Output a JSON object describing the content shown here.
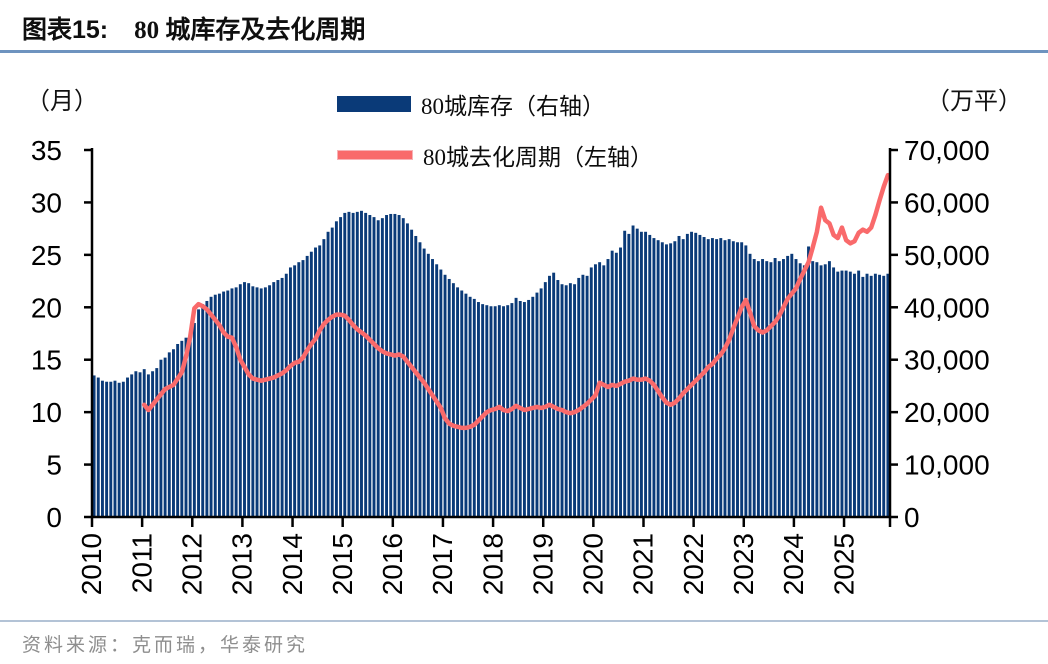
{
  "title": {
    "prefix": "图表15:",
    "text": "80 城库存及去化周期"
  },
  "colors": {
    "bar": "#0a3a78",
    "line": "#f96a6b",
    "line_swatch_border": "#f7b2b6",
    "axis": "#000000",
    "title_underline": "#6e93bf",
    "footer_divider": "#b3c3d6",
    "source_text": "#8e8e8e"
  },
  "axis_units": {
    "left": "（月）",
    "right": "（万平）"
  },
  "legend": [
    {
      "label": "80城库存（右轴）",
      "type": "bar",
      "color": "#0a3a78"
    },
    {
      "label": "80城去化周期（左轴）",
      "type": "line",
      "color": "#f96a6b"
    }
  ],
  "source": {
    "label": "资料来源：克而瑞，华泰研究"
  },
  "chart_data": {
    "type": "bar+line",
    "x_start": "2010-01",
    "x_end": "2025-11",
    "frequency": "monthly",
    "grid": false,
    "legend_position": "top-center",
    "x_year_ticks": [
      "2010",
      "2011",
      "2012",
      "2013",
      "2014",
      "2015",
      "2016",
      "2017",
      "2018",
      "2019",
      "2020",
      "2021",
      "2022",
      "2023",
      "2024",
      "2025"
    ],
    "left_axis": {
      "title": "（月）",
      "range": [
        0,
        35
      ],
      "tick_step": 5,
      "ticks": [
        0,
        5,
        10,
        15,
        20,
        25,
        30,
        35
      ],
      "tick_labels": [
        "0",
        "5",
        "10",
        "15",
        "20",
        "25",
        "30",
        "35"
      ]
    },
    "right_axis": {
      "title": "（万平）",
      "range": [
        0,
        70000
      ],
      "tick_step": 10000,
      "ticks": [
        0,
        10000,
        20000,
        30000,
        40000,
        50000,
        60000,
        70000
      ],
      "tick_labels": [
        "0",
        "10,000",
        "20,000",
        "30,000",
        "40,000",
        "50,000",
        "60,000",
        "70,000"
      ]
    },
    "series": [
      {
        "name": "80城库存（右轴）",
        "type": "bar",
        "axis": "right",
        "unit": "万平",
        "color": "#0a3a78",
        "values": [
          27000,
          26600,
          26000,
          25800,
          25800,
          26000,
          25600,
          25800,
          26600,
          27200,
          27800,
          27600,
          28200,
          27200,
          27800,
          28400,
          30000,
          30400,
          31400,
          32000,
          33000,
          33600,
          34200,
          35000,
          37000,
          39600,
          40600,
          41200,
          42000,
          42400,
          42600,
          43000,
          43200,
          43600,
          43800,
          44400,
          44800,
          44600,
          44000,
          43800,
          43600,
          43800,
          44200,
          44800,
          45200,
          45600,
          46400,
          47600,
          48000,
          48600,
          49000,
          49800,
          50600,
          51400,
          51800,
          53000,
          54400,
          55200,
          56400,
          57200,
          58000,
          58200,
          58000,
          58200,
          58400,
          58000,
          57600,
          57200,
          56600,
          57000,
          57600,
          57800,
          57800,
          57600,
          57000,
          56000,
          54800,
          53600,
          52400,
          51200,
          50200,
          49200,
          48200,
          47200,
          46200,
          45400,
          44600,
          43800,
          43200,
          42600,
          42000,
          41600,
          41000,
          40600,
          40400,
          40200,
          40200,
          40400,
          40200,
          40400,
          40800,
          41800,
          41200,
          41000,
          41400,
          42000,
          42800,
          43600,
          44800,
          46000,
          46600,
          45200,
          44400,
          44200,
          44600,
          44400,
          45600,
          46200,
          46000,
          47600,
          48200,
          48600,
          48000,
          49200,
          50800,
          50400,
          51400,
          54600,
          54000,
          55600,
          55000,
          54400,
          54400,
          53800,
          53200,
          52800,
          52400,
          52000,
          52200,
          52600,
          53600,
          53000,
          54000,
          54400,
          54200,
          53800,
          53400,
          53000,
          53200,
          53000,
          53200,
          52800,
          53000,
          52600,
          52400,
          52400,
          51800,
          50200,
          49200,
          48800,
          49200,
          48800,
          48600,
          49400,
          48800,
          49200,
          49800,
          50200,
          49200,
          48400,
          48000,
          51600,
          48800,
          48600,
          48000,
          48200,
          48800,
          47600,
          46800,
          47000,
          47000,
          46800,
          46400,
          47000,
          45800,
          46400,
          46000,
          46400,
          46200,
          46000,
          46400
        ]
      },
      {
        "name": "80城去化周期（左轴）",
        "type": "line",
        "axis": "left",
        "unit": "月",
        "color": "#f96a6b",
        "values": [
          null,
          null,
          null,
          null,
          null,
          null,
          null,
          null,
          null,
          null,
          null,
          null,
          10.7,
          10.2,
          10.7,
          11.2,
          11.7,
          12.2,
          12.4,
          12.6,
          13.2,
          13.8,
          15.3,
          17.2,
          19.9,
          20.3,
          20.1,
          19.8,
          19.3,
          18.8,
          18.3,
          17.6,
          17.2,
          17.1,
          16.2,
          15.0,
          14.3,
          13.6,
          13.2,
          13.1,
          13.0,
          13.1,
          13.2,
          13.3,
          13.5,
          13.7,
          14.0,
          14.4,
          14.7,
          14.8,
          15.2,
          15.9,
          16.5,
          17.0,
          17.8,
          18.4,
          18.8,
          19.1,
          19.3,
          19.3,
          19.2,
          18.8,
          18.3,
          17.9,
          17.6,
          17.3,
          16.9,
          16.5,
          16.1,
          15.8,
          15.6,
          15.5,
          15.4,
          15.5,
          15.3,
          14.8,
          14.3,
          13.8,
          13.3,
          12.8,
          12.2,
          11.6,
          11.0,
          10.4,
          9.4,
          8.9,
          8.7,
          8.6,
          8.5,
          8.5,
          8.6,
          8.8,
          9.2,
          9.6,
          10.0,
          10.2,
          10.3,
          10.5,
          10.2,
          10.1,
          10.3,
          10.6,
          10.4,
          10.2,
          10.3,
          10.4,
          10.5,
          10.4,
          10.5,
          10.7,
          10.5,
          10.3,
          10.2,
          10.0,
          9.9,
          10.0,
          10.2,
          10.5,
          10.8,
          11.2,
          11.6,
          12.8,
          12.6,
          12.4,
          12.6,
          12.5,
          12.7,
          12.9,
          13.0,
          13.2,
          13.1,
          13.1,
          13.2,
          13.0,
          12.6,
          12.0,
          11.4,
          10.9,
          10.7,
          10.9,
          11.3,
          11.8,
          12.2,
          12.6,
          13.0,
          13.4,
          13.8,
          14.3,
          14.6,
          15.1,
          15.5,
          16.1,
          16.9,
          18.0,
          19.0,
          20.0,
          20.7,
          19.5,
          18.2,
          17.8,
          17.6,
          17.8,
          18.2,
          18.6,
          19.2,
          20.0,
          20.8,
          21.3,
          21.8,
          22.7,
          23.5,
          24.3,
          25.7,
          27.2,
          29.5,
          28.3,
          28.0,
          26.9,
          26.6,
          27.6,
          26.4,
          26.1,
          26.3,
          27.1,
          27.4,
          27.2,
          27.6,
          28.8,
          30.2,
          31.5,
          32.6
        ]
      }
    ]
  }
}
